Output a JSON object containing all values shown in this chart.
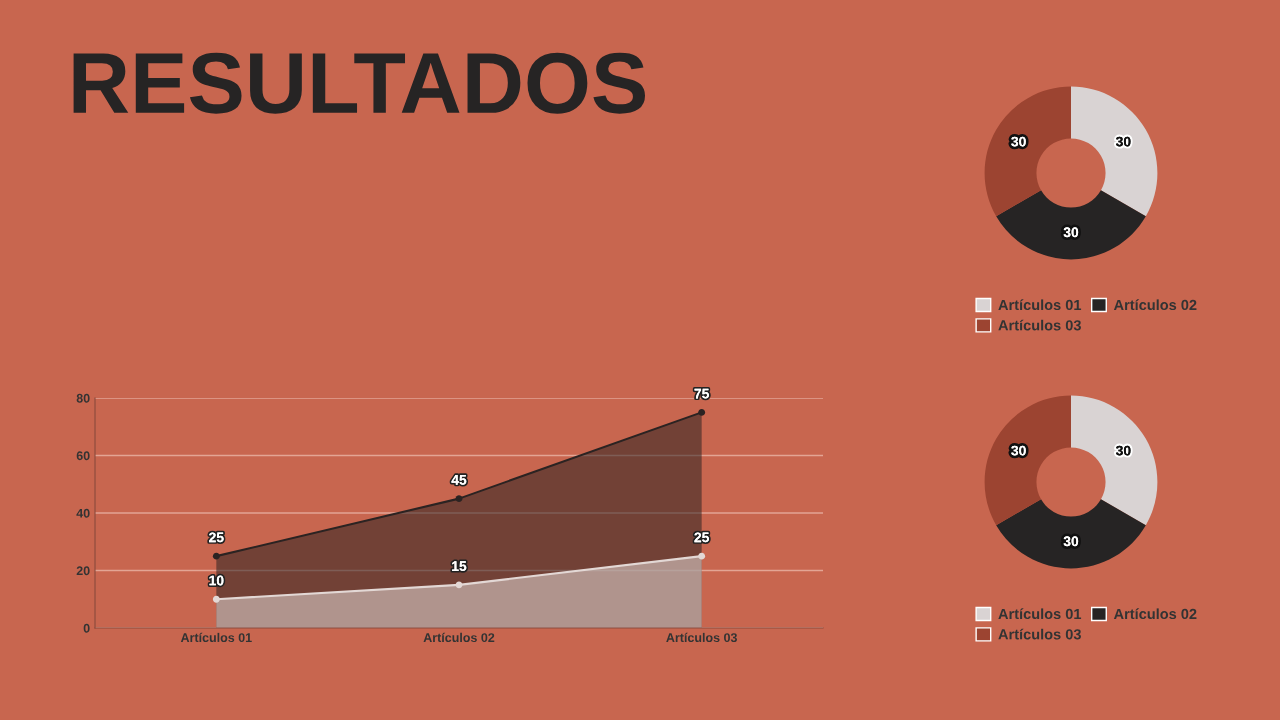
{
  "chart_data": [
    {
      "type": "area",
      "title": "RESULTADOS",
      "categories": [
        "Artículos 01",
        "Artículos 02",
        "Artículos 03"
      ],
      "series": [
        {
          "color": "#2b2322",
          "values": [
            25,
            45,
            75
          ]
        },
        {
          "color": "#e3d8d5",
          "values": [
            10,
            15,
            25
          ]
        }
      ],
      "ylim": [
        0,
        80
      ],
      "yticks": [
        0,
        20,
        40,
        60,
        80
      ],
      "grid": "y",
      "marker": "circle",
      "data_labels": true
    },
    {
      "type": "donut",
      "categories": [
        "Artículos 01",
        "Artículos 02",
        "Artículos 03"
      ],
      "values": [
        30,
        30,
        30
      ],
      "colors": [
        "#d9d3d3",
        "#262424",
        "#9c4431"
      ],
      "data_labels": true,
      "legend": "bottom"
    },
    {
      "type": "donut",
      "categories": [
        "Artículos 01",
        "Artículos 02",
        "Artículos 03"
      ],
      "values": [
        30,
        30,
        30
      ],
      "colors": [
        "#d9d3d3",
        "#262424",
        "#9c4431"
      ],
      "data_labels": true,
      "legend": "bottom"
    }
  ]
}
